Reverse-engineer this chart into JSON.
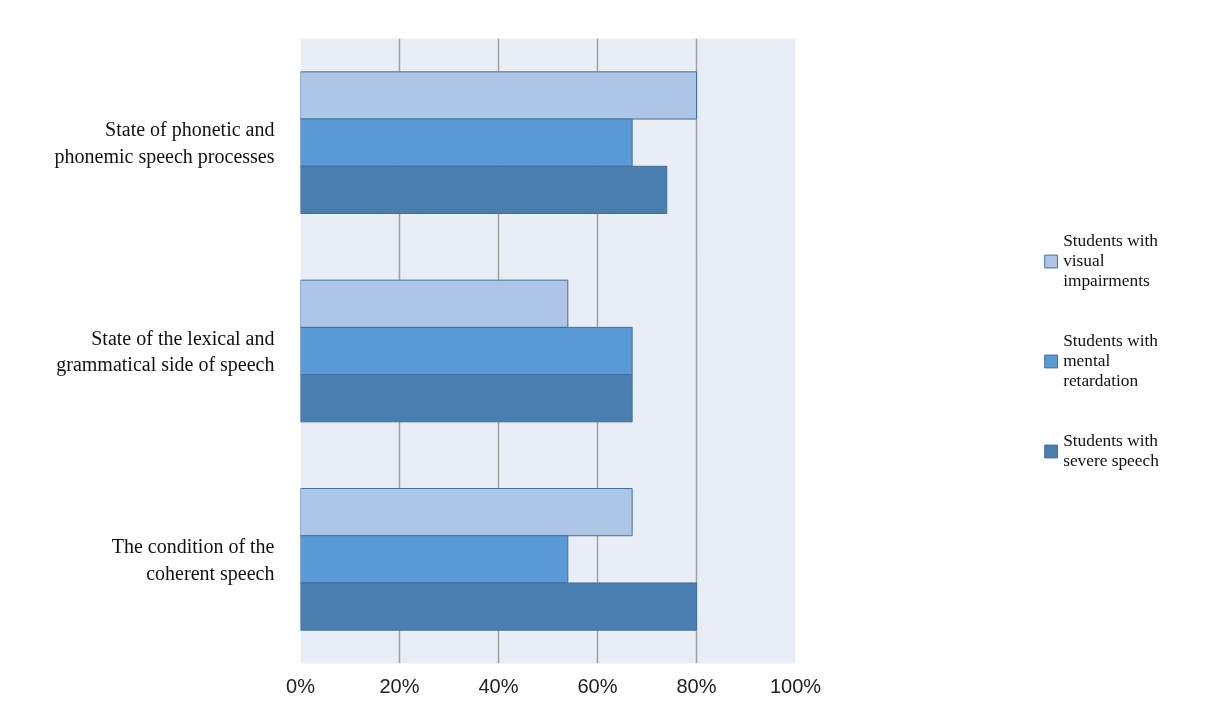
{
  "chart_data": {
    "type": "bar",
    "orientation": "horizontal",
    "categories": [
      "State of phonetic and phonemic speech processes",
      "State of the lexical and grammatical side of speech",
      "The condition of the coherent speech"
    ],
    "series": [
      {
        "name": "Students with visual impairments",
        "color": "#aec6e6",
        "values": [
          80,
          54,
          67
        ]
      },
      {
        "name": "Students with mental retardation",
        "color": "#5a9bd5",
        "values": [
          67,
          67,
          54
        ]
      },
      {
        "name": "Students with severe speech",
        "color": "#4a7eae",
        "values": [
          74,
          67,
          80
        ]
      }
    ],
    "xlim": [
      0,
      100
    ],
    "xticks": [
      {
        "value": 0,
        "label": "0%"
      },
      {
        "value": 20,
        "label": "20%"
      },
      {
        "value": 40,
        "label": "40%"
      },
      {
        "value": 60,
        "label": "60%"
      },
      {
        "value": 80,
        "label": "80%"
      },
      {
        "value": 100,
        "label": "100%"
      }
    ],
    "grid": "x",
    "legend": "right"
  }
}
